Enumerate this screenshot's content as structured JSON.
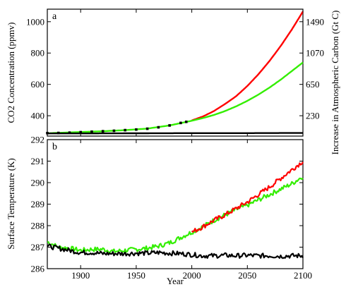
{
  "chart_data": [
    {
      "panel": "a",
      "type": "line",
      "xlabel": "",
      "ylabel": "CO2 Concentration (ppmv)",
      "ylabel_right": "Increase in Atmospheric Carbon (Gt C)",
      "xlim": [
        1870,
        2100
      ],
      "ylim": [
        270,
        1080
      ],
      "yticks": [
        400,
        600,
        800,
        1000
      ],
      "yticks_right": [
        230,
        650,
        1070,
        1490
      ],
      "x_tick_marks": [
        1900,
        1950,
        2000,
        2050,
        2100
      ],
      "colors": {
        "red": "#ff0000",
        "green": "#33ee00",
        "black": "#000000",
        "observed": "#000000"
      },
      "series": [
        {
          "color": "red",
          "x": [
            2000,
            2010,
            2020,
            2030,
            2040,
            2050,
            2060,
            2070,
            2080,
            2090,
            2100
          ],
          "values": [
            370,
            395,
            430,
            475,
            525,
            590,
            665,
            750,
            845,
            950,
            1065
          ]
        },
        {
          "color": "green",
          "x": [
            1870,
            1900,
            1920,
            1940,
            1960,
            1980,
            2000,
            2010,
            2020,
            2030,
            2040,
            2050,
            2060,
            2070,
            2080,
            2090,
            2100
          ],
          "values": [
            288,
            296,
            301,
            308,
            318,
            338,
            368,
            385,
            405,
            430,
            460,
            495,
            535,
            580,
            630,
            685,
            740
          ]
        },
        {
          "color": "black",
          "x": [
            1870,
            1900,
            1950,
            2000,
            2050,
            2100
          ],
          "values": [
            287,
            287,
            288,
            289,
            289,
            290
          ]
        },
        {
          "color": "observed",
          "style": "dots",
          "x": [
            1870,
            1880,
            1890,
            1900,
            1910,
            1920,
            1930,
            1940,
            1950,
            1960,
            1970,
            1980,
            1990,
            1995
          ],
          "values": [
            289,
            290,
            292,
            295,
            298,
            301,
            304,
            308,
            312,
            317,
            326,
            338,
            354,
            361
          ]
        }
      ]
    },
    {
      "panel": "b",
      "type": "line",
      "xlabel": "Year",
      "ylabel": "Surface Temperature (K)",
      "xlim": [
        1870,
        2100
      ],
      "ylim": [
        286,
        292
      ],
      "yticks": [
        286,
        287,
        288,
        289,
        290,
        291,
        292
      ],
      "xticks": [
        1900,
        1950,
        2000,
        2050,
        2100
      ],
      "colors": {
        "red": "#ff0000",
        "green": "#33ee00",
        "black": "#000000"
      },
      "series": [
        {
          "color": "green",
          "x": [
            1870,
            1880,
            1890,
            1900,
            1910,
            1920,
            1930,
            1940,
            1950,
            1960,
            1970,
            1980,
            1990,
            2000,
            2010,
            2020,
            2030,
            2040,
            2050,
            2060,
            2070,
            2080,
            2090,
            2100
          ],
          "values": [
            287.25,
            287.0,
            286.95,
            286.85,
            286.9,
            286.9,
            286.8,
            286.85,
            286.9,
            286.95,
            287.05,
            287.2,
            287.45,
            287.7,
            287.95,
            288.25,
            288.5,
            288.75,
            288.95,
            289.2,
            289.45,
            289.7,
            289.95,
            290.3
          ]
        },
        {
          "color": "red",
          "x": [
            2000,
            2010,
            2020,
            2030,
            2040,
            2050,
            2060,
            2070,
            2080,
            2090,
            2100
          ],
          "values": [
            287.7,
            287.95,
            288.25,
            288.5,
            288.8,
            289.1,
            289.45,
            289.8,
            290.2,
            290.6,
            291.0
          ]
        },
        {
          "color": "black",
          "x": [
            1870,
            1880,
            1890,
            1900,
            1910,
            1920,
            1930,
            1940,
            1950,
            1960,
            1970,
            1980,
            1990,
            2000,
            2010,
            2020,
            2030,
            2040,
            2050,
            2060,
            2070,
            2080,
            2090,
            2100
          ],
          "values": [
            287.05,
            286.95,
            286.85,
            286.75,
            286.75,
            286.7,
            286.7,
            286.7,
            286.72,
            286.72,
            286.75,
            286.72,
            286.7,
            286.65,
            286.6,
            286.6,
            286.62,
            286.6,
            286.62,
            286.6,
            286.6,
            286.58,
            286.6,
            286.6
          ]
        }
      ]
    }
  ]
}
